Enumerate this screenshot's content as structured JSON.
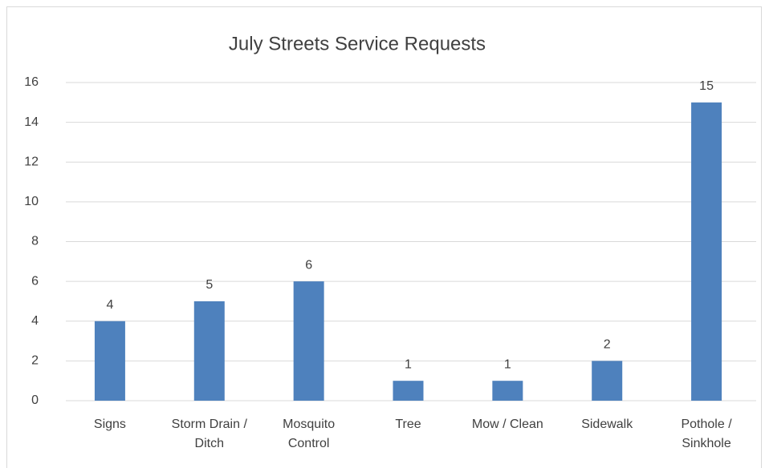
{
  "chart_data": {
    "type": "bar",
    "title": "July Streets Service Requests",
    "categories": [
      "Signs",
      "Storm Drain / Ditch",
      "Mosquito Control",
      "Tree",
      "Mow / Clean",
      "Sidewalk",
      "Pothole / Sinkhole"
    ],
    "values": [
      4,
      5,
      6,
      1,
      1,
      2,
      15
    ],
    "color": "#4e81bd",
    "ylim": [
      0,
      16
    ],
    "yticks": [
      0,
      2,
      4,
      6,
      8,
      10,
      12,
      14,
      16
    ],
    "grid": true,
    "data_labels": true
  }
}
